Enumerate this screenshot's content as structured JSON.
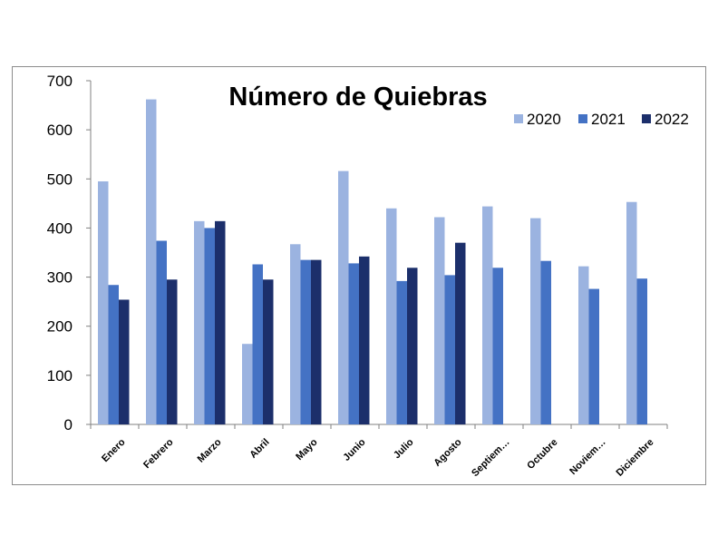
{
  "chart_data": {
    "type": "bar",
    "title": "Número de Quiebras",
    "xlabel": "",
    "ylabel": "",
    "ylim": [
      0,
      700
    ],
    "yticks": [
      0,
      100,
      200,
      300,
      400,
      500,
      600,
      700
    ],
    "grid": false,
    "legend_position": "top-right",
    "categories": [
      "Enero",
      "Febrero",
      "Marzo",
      "Abril",
      "Mayo",
      "Junio",
      "Julio",
      "Agosto",
      "Septiem…",
      "Octubre",
      "Noviem…",
      "Diciembre"
    ],
    "series": [
      {
        "name": "2020",
        "color": "#9bb3e0",
        "values": [
          495,
          662,
          414,
          164,
          367,
          516,
          440,
          422,
          444,
          420,
          322,
          453
        ]
      },
      {
        "name": "2021",
        "color": "#4472c4",
        "values": [
          284,
          374,
          400,
          326,
          335,
          328,
          292,
          304,
          319,
          333,
          276,
          297
        ]
      },
      {
        "name": "2022",
        "color": "#1c2f6b",
        "values": [
          254,
          295,
          414,
          295,
          335,
          342,
          319,
          370,
          null,
          null,
          null,
          null
        ]
      }
    ]
  }
}
